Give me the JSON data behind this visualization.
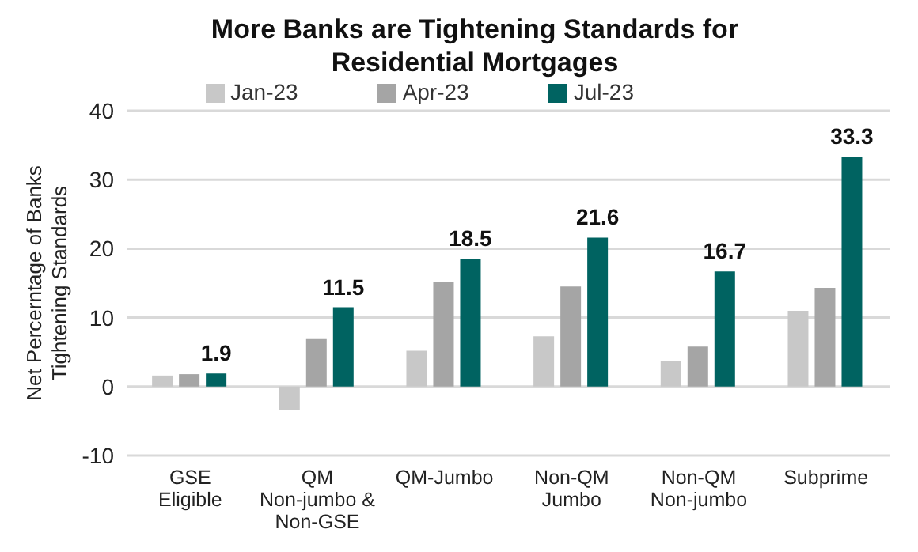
{
  "chart_data": {
    "type": "bar",
    "title": "More Banks are Tightening Standards for Residential Mortgages",
    "ylabel": "Net Percerntage of Banks Tightening Standards",
    "categories": [
      "GSE Eligible",
      "QM Non-jumbo & Non-GSE",
      "QM-Jumbo",
      "Non-QM Jumbo",
      "Non-QM Non-jumbo",
      "Subprime"
    ],
    "series": [
      {
        "name": "Jan-23",
        "color": "#c8c8c8",
        "values": [
          1.6,
          -3.4,
          5.2,
          7.3,
          3.7,
          11.0
        ]
      },
      {
        "name": "Apr-23",
        "color": "#a5a5a5",
        "values": [
          1.8,
          6.9,
          15.2,
          14.5,
          5.8,
          14.3
        ]
      },
      {
        "name": "Jul-23",
        "color": "#006361",
        "values": [
          1.9,
          11.5,
          18.5,
          21.6,
          16.7,
          33.3
        ],
        "value_labels": [
          "1.9",
          "11.5",
          "18.5",
          "21.6",
          "16.7",
          "33.3"
        ]
      }
    ],
    "ylim": [
      -10,
      40
    ],
    "yticks": [
      -10,
      0,
      10,
      20,
      30,
      40
    ],
    "grid": "y",
    "legend": "top"
  }
}
